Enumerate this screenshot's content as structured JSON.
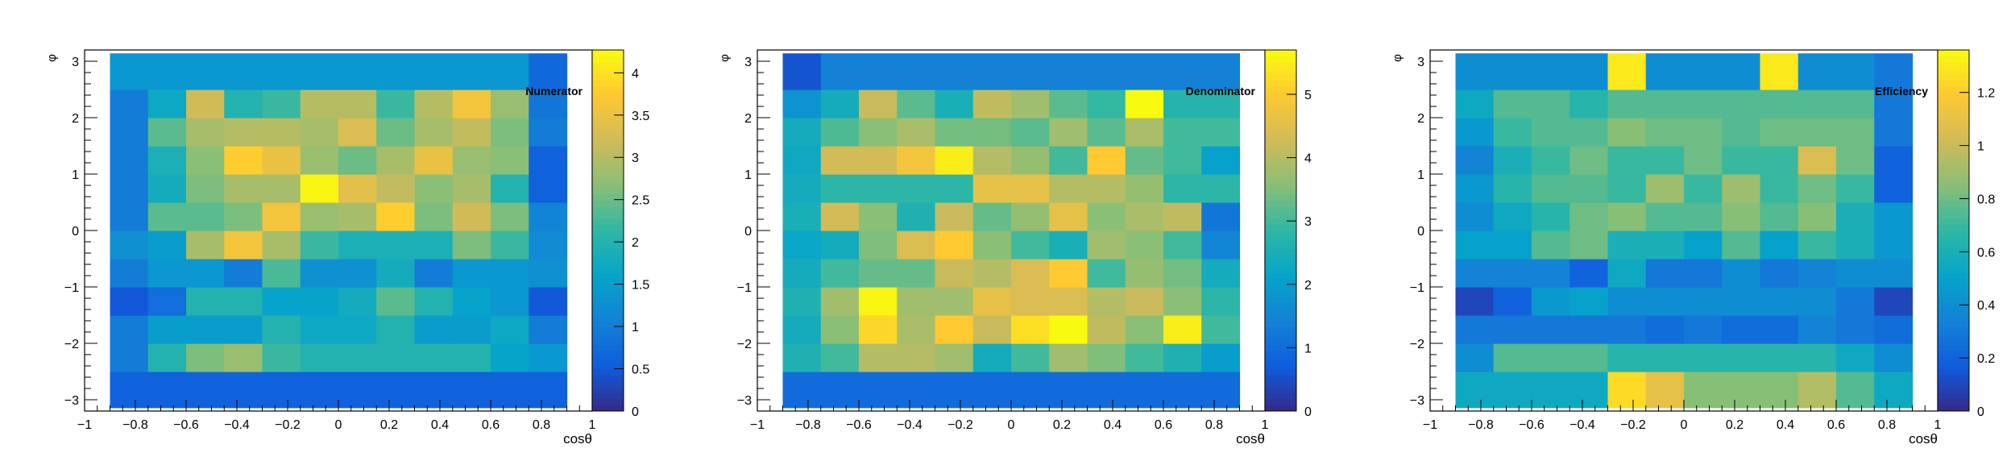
{
  "palette": [
    "#352a87",
    "#0f5cdd",
    "#1481d6",
    "#06a4ca",
    "#2eb7a4",
    "#87bf77",
    "#d1bb59",
    "#fec832",
    "#f9fb0e"
  ],
  "chart_data": [
    {
      "type": "heatmap",
      "title": "Numerator",
      "xlabel": "cosθ",
      "ylabel": "φ",
      "xlim": [
        -1,
        1
      ],
      "ylim": [
        -3.2,
        3.2
      ],
      "x_ticks": [
        {
          "v": -1,
          "label": "−1"
        },
        {
          "v": -0.8,
          "label": "−0.8"
        },
        {
          "v": -0.6,
          "label": "−0.6"
        },
        {
          "v": -0.4,
          "label": "−0.4"
        },
        {
          "v": -0.2,
          "label": "−0.2"
        },
        {
          "v": 0,
          "label": "0"
        },
        {
          "v": 0.2,
          "label": "0.2"
        },
        {
          "v": 0.4,
          "label": "0.4"
        },
        {
          "v": 0.6,
          "label": "0.6"
        },
        {
          "v": 0.8,
          "label": "0.8"
        },
        {
          "v": 1,
          "label": "1"
        }
      ],
      "y_ticks": [
        {
          "v": -3,
          "label": "−3"
        },
        {
          "v": -2,
          "label": "−2"
        },
        {
          "v": -1,
          "label": "−1"
        },
        {
          "v": 0,
          "label": "0"
        },
        {
          "v": 1,
          "label": "1"
        },
        {
          "v": 2,
          "label": "2"
        },
        {
          "v": 3,
          "label": "3"
        }
      ],
      "x_edges": [
        -0.9,
        -0.75,
        -0.6,
        -0.45,
        -0.3,
        -0.15,
        0,
        0.15,
        0.3,
        0.45,
        0.6,
        0.75,
        0.9
      ],
      "y_edges": [
        -3.14,
        -3.03,
        -2.5,
        -2,
        -1.5,
        -1,
        -0.5,
        0,
        0.5,
        1,
        1.5,
        2,
        2.5,
        3.03,
        3.14
      ],
      "z_range": [
        0,
        4.27
      ],
      "z_ticks": [
        {
          "v": 0,
          "label": "0"
        },
        {
          "v": 0.5,
          "label": "0.5"
        },
        {
          "v": 1,
          "label": "1"
        },
        {
          "v": 1.5,
          "label": "1.5"
        },
        {
          "v": 2,
          "label": "2"
        },
        {
          "v": 2.5,
          "label": "2.5"
        },
        {
          "v": 3,
          "label": "3"
        },
        {
          "v": 3.5,
          "label": "3.5"
        },
        {
          "v": 4,
          "label": "4"
        }
      ],
      "z": [
        [
          0.6,
          0.6,
          0.6,
          0.6,
          0.6,
          0.6,
          0.6,
          0.6,
          0.6,
          0.6,
          0.6,
          0.6
        ],
        [
          1.0,
          2.0,
          2.6,
          2.8,
          2.2,
          2.0,
          2.0,
          2.0,
          2.0,
          2.0,
          1.6,
          1.4
        ],
        [
          1.0,
          1.5,
          1.5,
          1.5,
          2.0,
          1.7,
          1.7,
          2.0,
          1.5,
          1.5,
          1.7,
          1.0
        ],
        [
          0.5,
          0.8,
          2.0,
          2.0,
          1.6,
          1.6,
          1.8,
          2.4,
          2.0,
          1.6,
          1.4,
          0.5
        ],
        [
          1.0,
          1.4,
          1.4,
          1.0,
          2.3,
          1.3,
          1.3,
          1.8,
          1.0,
          1.4,
          1.4,
          1.3
        ],
        [
          1.3,
          1.5,
          2.9,
          3.6,
          2.9,
          2.2,
          1.9,
          1.9,
          1.9,
          2.6,
          2.2,
          1.2
        ],
        [
          1.0,
          2.4,
          2.4,
          2.6,
          3.6,
          2.8,
          2.9,
          3.8,
          2.6,
          3.2,
          2.6,
          1.1
        ],
        [
          1.0,
          1.8,
          2.6,
          2.9,
          2.9,
          4.2,
          3.4,
          3.1,
          2.7,
          2.9,
          2.0,
          0.6
        ],
        [
          1.0,
          1.9,
          2.7,
          3.8,
          3.5,
          2.8,
          2.5,
          2.9,
          3.5,
          2.8,
          2.7,
          0.6
        ],
        [
          1.0,
          2.4,
          2.9,
          3.0,
          3.0,
          2.9,
          3.3,
          2.5,
          2.9,
          3.1,
          2.6,
          1.0
        ],
        [
          1.0,
          1.7,
          3.2,
          2.0,
          2.2,
          3.0,
          3.0,
          2.2,
          3.0,
          3.6,
          2.8,
          0.9
        ],
        [
          1.4,
          1.4,
          1.4,
          1.4,
          1.4,
          1.4,
          1.4,
          1.4,
          1.4,
          1.4,
          1.4,
          0.7
        ]
      ]
    },
    {
      "type": "heatmap",
      "title": "Denominator",
      "xlabel": "cosθ",
      "ylabel": "φ",
      "xlim": [
        -1,
        1
      ],
      "ylim": [
        -3.2,
        3.2
      ],
      "x_ticks": [
        {
          "v": -1,
          "label": "−1"
        },
        {
          "v": -0.8,
          "label": "−0.8"
        },
        {
          "v": -0.6,
          "label": "−0.6"
        },
        {
          "v": -0.4,
          "label": "−0.4"
        },
        {
          "v": -0.2,
          "label": "−0.2"
        },
        {
          "v": 0,
          "label": "0"
        },
        {
          "v": 0.2,
          "label": "0.2"
        },
        {
          "v": 0.4,
          "label": "0.4"
        },
        {
          "v": 0.6,
          "label": "0.6"
        },
        {
          "v": 0.8,
          "label": "0.8"
        },
        {
          "v": 1,
          "label": "1"
        }
      ],
      "y_ticks": [
        {
          "v": -3,
          "label": "−3"
        },
        {
          "v": -2,
          "label": "−2"
        },
        {
          "v": -1,
          "label": "−1"
        },
        {
          "v": 0,
          "label": "0"
        },
        {
          "v": 1,
          "label": "1"
        },
        {
          "v": 2,
          "label": "2"
        },
        {
          "v": 3,
          "label": "3"
        }
      ],
      "x_edges": [
        -0.9,
        -0.75,
        -0.6,
        -0.45,
        -0.3,
        -0.15,
        0,
        0.15,
        0.3,
        0.45,
        0.6,
        0.75,
        0.9
      ],
      "y_edges": [
        -3.14,
        -3.03,
        -2.5,
        -2,
        -1.5,
        -1,
        -0.5,
        0,
        0.5,
        1,
        1.5,
        2,
        2.5,
        3.03,
        3.14
      ],
      "z_range": [
        0,
        5.7
      ],
      "z_ticks": [
        {
          "v": 0,
          "label": "0"
        },
        {
          "v": 1,
          "label": "1"
        },
        {
          "v": 2,
          "label": "2"
        },
        {
          "v": 3,
          "label": "3"
        },
        {
          "v": 4,
          "label": "4"
        },
        {
          "v": 5,
          "label": "5"
        }
      ],
      "z": [
        [
          1.0,
          1.0,
          1.0,
          1.0,
          1.0,
          1.0,
          1.0,
          1.0,
          1.0,
          1.0,
          1.0,
          1.0
        ],
        [
          2.6,
          3.0,
          4.0,
          4.0,
          3.8,
          2.4,
          3.0,
          3.8,
          3.5,
          3.0,
          2.6,
          2.0
        ],
        [
          2.4,
          3.6,
          5.2,
          3.9,
          5.0,
          4.2,
          5.3,
          5.8,
          4.1,
          3.6,
          5.5,
          3.0
        ],
        [
          2.6,
          3.8,
          5.6,
          3.8,
          3.8,
          4.6,
          4.4,
          4.4,
          4.0,
          4.2,
          3.6,
          2.8
        ],
        [
          2.4,
          3.0,
          3.3,
          3.3,
          4.2,
          4.0,
          4.4,
          5.0,
          3.0,
          3.7,
          3.4,
          2.4
        ],
        [
          2.2,
          2.4,
          3.5,
          4.4,
          5.0,
          3.6,
          3.0,
          2.5,
          3.8,
          3.6,
          3.0,
          1.5
        ],
        [
          2.5,
          4.3,
          3.6,
          2.6,
          4.2,
          3.3,
          3.7,
          4.6,
          3.6,
          3.9,
          4.1,
          1.2
        ],
        [
          2.4,
          2.8,
          2.8,
          2.8,
          2.8,
          4.6,
          4.6,
          4.0,
          4.0,
          3.7,
          2.8,
          2.8
        ],
        [
          2.3,
          4.3,
          4.3,
          4.8,
          5.5,
          4.0,
          3.7,
          3.0,
          5.0,
          3.3,
          3.0,
          2.1
        ],
        [
          2.4,
          3.1,
          3.6,
          3.9,
          3.4,
          3.4,
          3.2,
          3.8,
          3.2,
          3.9,
          3.0,
          3.0
        ],
        [
          1.8,
          2.4,
          4.2,
          3.2,
          2.5,
          4.1,
          3.8,
          3.2,
          2.9,
          5.7,
          2.7,
          2.7
        ],
        [
          0.6,
          1.4,
          1.4,
          1.4,
          1.4,
          1.4,
          1.4,
          1.4,
          1.4,
          1.4,
          1.4,
          1.4
        ]
      ]
    },
    {
      "type": "heatmap",
      "title": "Efficiency",
      "xlabel": "cosθ",
      "ylabel": "φ",
      "xlim": [
        -1,
        1
      ],
      "ylim": [
        -3.2,
        3.2
      ],
      "x_ticks": [
        {
          "v": -1,
          "label": "−1"
        },
        {
          "v": -0.8,
          "label": "−0.8"
        },
        {
          "v": -0.6,
          "label": "−0.6"
        },
        {
          "v": -0.4,
          "label": "−0.4"
        },
        {
          "v": -0.2,
          "label": "−0.2"
        },
        {
          "v": 0,
          "label": "0"
        },
        {
          "v": 0.2,
          "label": "0.2"
        },
        {
          "v": 0.4,
          "label": "0.4"
        },
        {
          "v": 0.6,
          "label": "0.6"
        },
        {
          "v": 0.8,
          "label": "0.8"
        },
        {
          "v": 1,
          "label": "1"
        }
      ],
      "y_ticks": [
        {
          "v": -3,
          "label": "−3"
        },
        {
          "v": -2,
          "label": "−2"
        },
        {
          "v": -1,
          "label": "−1"
        },
        {
          "v": 0,
          "label": "0"
        },
        {
          "v": 1,
          "label": "1"
        },
        {
          "v": 2,
          "label": "2"
        },
        {
          "v": 3,
          "label": "3"
        }
      ],
      "x_edges": [
        -0.9,
        -0.75,
        -0.6,
        -0.45,
        -0.3,
        -0.15,
        0,
        0.15,
        0.3,
        0.45,
        0.6,
        0.75,
        0.9
      ],
      "y_edges": [
        -3.14,
        -3.03,
        -2.5,
        -2,
        -1.5,
        -1,
        -0.5,
        0,
        0.5,
        1,
        1.5,
        2,
        2.5,
        3.03,
        3.14
      ],
      "z_range": [
        0,
        1.36
      ],
      "z_ticks": [
        {
          "v": 0,
          "label": "0"
        },
        {
          "v": 0.2,
          "label": "0.2"
        },
        {
          "v": 0.4,
          "label": "0.4"
        },
        {
          "v": 0.6,
          "label": "0.6"
        },
        {
          "v": 0.8,
          "label": "0.8"
        },
        {
          "v": 1,
          "label": "1"
        },
        {
          "v": 1.2,
          "label": "1.2"
        }
      ],
      "z": [
        [
          0.55,
          0.55,
          0.55,
          0.55,
          1.25,
          1.1,
          0.85,
          0.85,
          0.85,
          0.95,
          0.75,
          0.55
        ],
        [
          0.4,
          0.75,
          0.75,
          0.75,
          0.65,
          0.65,
          0.65,
          0.65,
          0.65,
          0.65,
          0.55,
          0.4
        ],
        [
          0.3,
          0.3,
          0.3,
          0.3,
          0.3,
          0.25,
          0.3,
          0.25,
          0.25,
          0.35,
          0.3,
          0.25
        ],
        [
          0.1,
          0.2,
          0.45,
          0.5,
          0.4,
          0.4,
          0.4,
          0.4,
          0.4,
          0.4,
          0.3,
          0.1
        ],
        [
          0.35,
          0.35,
          0.35,
          0.2,
          0.55,
          0.3,
          0.3,
          0.4,
          0.3,
          0.35,
          0.4,
          0.4
        ],
        [
          0.5,
          0.5,
          0.75,
          0.8,
          0.6,
          0.6,
          0.5,
          0.75,
          0.5,
          0.7,
          0.6,
          0.45
        ],
        [
          0.4,
          0.55,
          0.65,
          0.8,
          0.85,
          0.75,
          0.75,
          0.85,
          0.75,
          0.85,
          0.6,
          0.45
        ],
        [
          0.45,
          0.65,
          0.75,
          0.75,
          0.7,
          0.9,
          0.7,
          0.9,
          0.7,
          0.8,
          0.7,
          0.2
        ],
        [
          0.35,
          0.6,
          0.7,
          0.8,
          0.7,
          0.7,
          0.8,
          0.7,
          0.7,
          1.05,
          0.8,
          0.2
        ],
        [
          0.45,
          0.7,
          0.75,
          0.75,
          0.85,
          0.8,
          0.8,
          0.75,
          0.8,
          0.8,
          0.8,
          0.3
        ],
        [
          0.55,
          0.75,
          0.75,
          0.65,
          0.75,
          0.75,
          0.75,
          0.75,
          0.75,
          0.75,
          0.75,
          0.3
        ],
        [
          0.4,
          0.4,
          0.4,
          0.4,
          1.3,
          0.4,
          0.4,
          0.4,
          1.3,
          0.4,
          0.4,
          0.3
        ]
      ]
    }
  ]
}
